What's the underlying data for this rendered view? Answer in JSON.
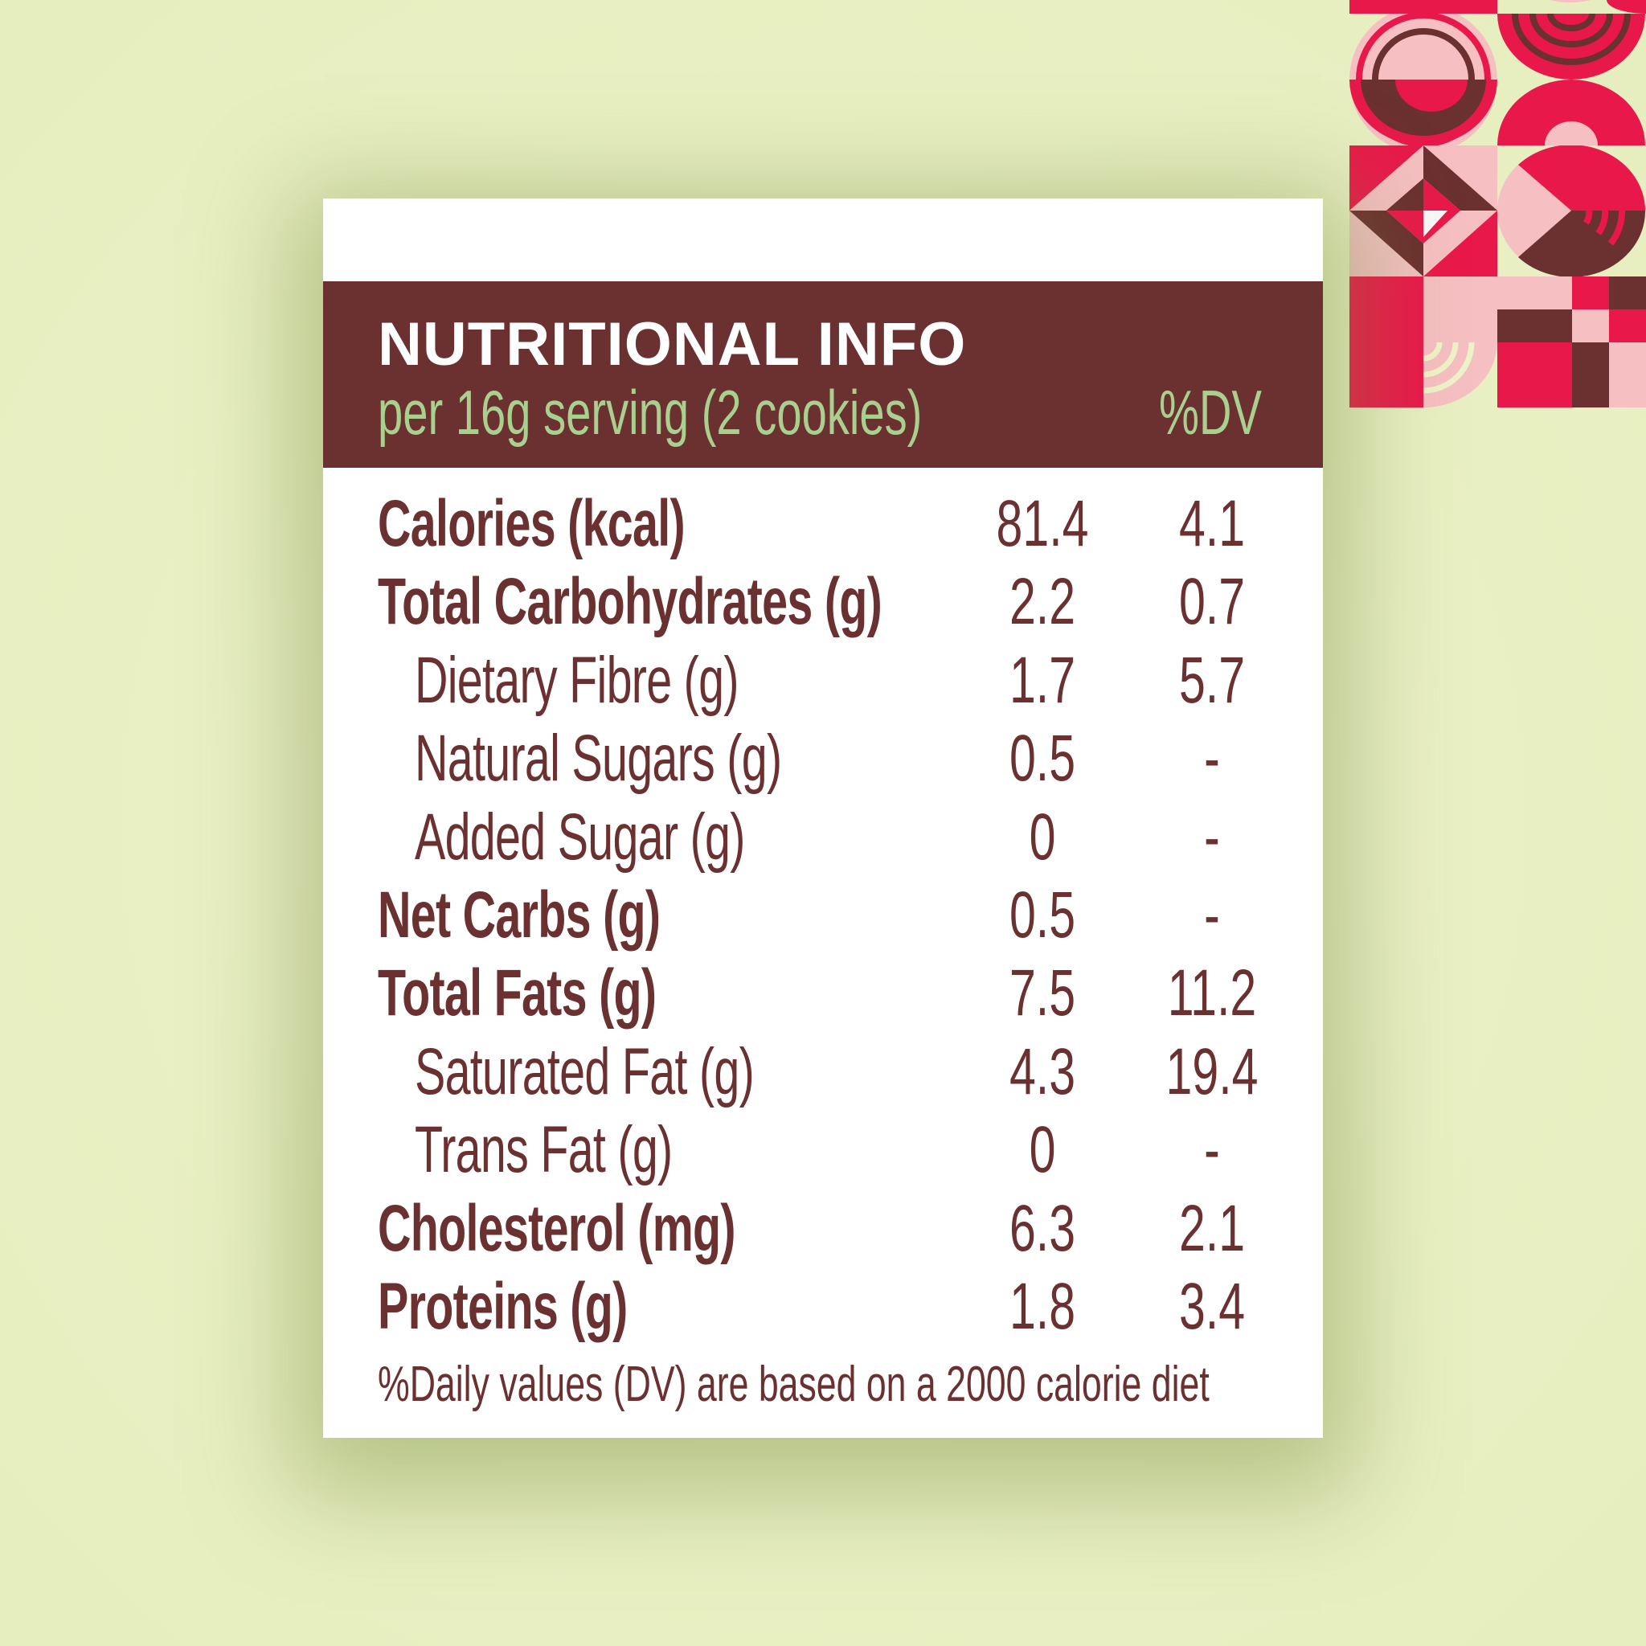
{
  "header": {
    "title": "NUTRITIONAL INFO",
    "serving": "per 16g serving (2 cookies)",
    "dv_header": "%DV"
  },
  "rows": [
    {
      "label": "Calories (kcal)",
      "value": "81.4",
      "dv": "4.1",
      "bold": true
    },
    {
      "label": "Total Carbohydrates (g)",
      "value": "2.2",
      "dv": "0.7",
      "bold": true
    },
    {
      "label": "Dietary Fibre (g)",
      "value": "1.7",
      "dv": "5.7",
      "bold": false
    },
    {
      "label": "Natural Sugars (g)",
      "value": "0.5",
      "dv": "-",
      "bold": false
    },
    {
      "label": "Added Sugar (g)",
      "value": "0",
      "dv": "-",
      "bold": false
    },
    {
      "label": "Net Carbs (g)",
      "value": "0.5",
      "dv": "-",
      "bold": true
    },
    {
      "label": "Total Fats (g)",
      "value": "7.5",
      "dv": "11.2",
      "bold": true
    },
    {
      "label": "Saturated Fat (g)",
      "value": "4.3",
      "dv": "19.4",
      "bold": false
    },
    {
      "label": "Trans Fat (g)",
      "value": "0",
      "dv": "-",
      "bold": false
    },
    {
      "label": "Cholesterol (mg)",
      "value": "6.3",
      "dv": "2.1",
      "bold": true
    },
    {
      "label": "Proteins (g)",
      "value": "1.8",
      "dv": "3.4",
      "bold": true
    }
  ],
  "footnote": "%Daily values (DV) are based on a 2000 calorie diet",
  "colors": {
    "brown": "#6b3030",
    "green": "#a9d08e",
    "red": "#e8194a",
    "pink": "#f6bfc2",
    "background": "#e9f0c4"
  }
}
